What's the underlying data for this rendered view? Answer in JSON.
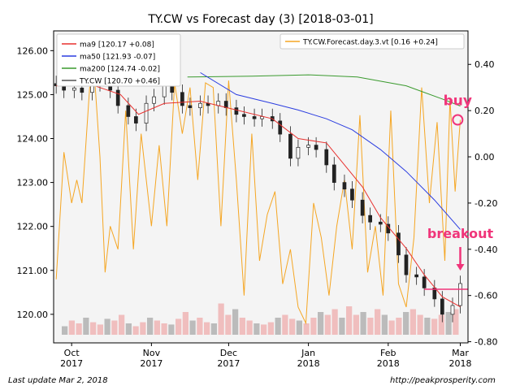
{
  "chart_data": {
    "type": "candlestick-with-overlays",
    "title": "TY.CW vs Forecast day (3)  [2018-03-01]",
    "x_tick_labels": [
      {
        "line1": "Oct",
        "line2": "2017",
        "date": "2017-10-01"
      },
      {
        "line1": "Nov",
        "line2": "2017",
        "date": "2017-11-01"
      },
      {
        "line1": "Dec",
        "line2": "2017",
        "date": "2017-12-01"
      },
      {
        "line1": "Jan",
        "line2": "2018",
        "date": "2018-01-01"
      },
      {
        "line1": "Feb",
        "line2": "2018",
        "date": "2018-02-01"
      },
      {
        "line1": "Mar",
        "line2": "2018",
        "date": "2018-03-01"
      }
    ],
    "x_range": [
      "2017-09-24",
      "2018-03-04"
    ],
    "left_axis": {
      "ylim": [
        119.35,
        126.45
      ],
      "ticks": [
        "120.00",
        "121.00",
        "122.00",
        "123.00",
        "124.00",
        "125.00",
        "126.00"
      ]
    },
    "right_axis": {
      "ylim": [
        -0.805,
        0.545
      ],
      "ticks": [
        "-0.80",
        "-0.60",
        "-0.40",
        "-0.20",
        "0.00",
        "0.20",
        "0.40"
      ]
    },
    "legend_left": [
      {
        "label": "ma9 [120.17 +0.08]",
        "color": "#e8312f"
      },
      {
        "label": "ma50 [121.93 -0.07]",
        "color": "#2b3de0"
      },
      {
        "label": "ma200 [124.74 -0.02]",
        "color": "#3a9a2e"
      },
      {
        "label": "TY.CW [120.70 +0.46]",
        "color": "#555555"
      }
    ],
    "legend_right": [
      {
        "label": "TY.CW.Forecast.day.3.vt [0.16 +0.24]",
        "color": "#f5a623"
      }
    ],
    "price_series": [
      {
        "date": "2017-09-25",
        "close": 125.2
      },
      {
        "date": "2017-09-28",
        "close": 125.1
      },
      {
        "date": "2017-10-02",
        "close": 125.15
      },
      {
        "date": "2017-10-05",
        "close": 125.05
      },
      {
        "date": "2017-10-09",
        "close": 125.25
      },
      {
        "date": "2017-10-12",
        "close": 125.3
      },
      {
        "date": "2017-10-16",
        "close": 125.1
      },
      {
        "date": "2017-10-19",
        "close": 124.75
      },
      {
        "date": "2017-10-23",
        "close": 124.5
      },
      {
        "date": "2017-10-26",
        "close": 124.35
      },
      {
        "date": "2017-10-30",
        "close": 124.8
      },
      {
        "date": "2017-11-02",
        "close": 124.95
      },
      {
        "date": "2017-11-06",
        "close": 125.2
      },
      {
        "date": "2017-11-09",
        "close": 125.05
      },
      {
        "date": "2017-11-13",
        "close": 124.75
      },
      {
        "date": "2017-11-16",
        "close": 124.7
      },
      {
        "date": "2017-11-20",
        "close": 124.8
      },
      {
        "date": "2017-11-23",
        "close": 124.75
      },
      {
        "date": "2017-11-27",
        "close": 124.85
      },
      {
        "date": "2017-11-30",
        "close": 124.7
      },
      {
        "date": "2017-12-04",
        "close": 124.55
      },
      {
        "date": "2017-12-07",
        "close": 124.5
      },
      {
        "date": "2017-12-11",
        "close": 124.45
      },
      {
        "date": "2017-12-14",
        "close": 124.5
      },
      {
        "date": "2017-12-18",
        "close": 124.4
      },
      {
        "date": "2017-12-21",
        "close": 124.1
      },
      {
        "date": "2017-12-25",
        "close": 123.55
      },
      {
        "date": "2017-12-28",
        "close": 123.8
      },
      {
        "date": "2018-01-01",
        "close": 123.85
      },
      {
        "date": "2018-01-04",
        "close": 123.75
      },
      {
        "date": "2018-01-08",
        "close": 123.4
      },
      {
        "date": "2018-01-11",
        "close": 123.0
      },
      {
        "date": "2018-01-15",
        "close": 122.85
      },
      {
        "date": "2018-01-18",
        "close": 122.6
      },
      {
        "date": "2018-01-22",
        "close": 122.25
      },
      {
        "date": "2018-01-25",
        "close": 122.1
      },
      {
        "date": "2018-01-29",
        "close": 122.05
      },
      {
        "date": "2018-02-01",
        "close": 121.85
      },
      {
        "date": "2018-02-05",
        "close": 121.35
      },
      {
        "date": "2018-02-08",
        "close": 120.9
      },
      {
        "date": "2018-02-12",
        "close": 120.85
      },
      {
        "date": "2018-02-15",
        "close": 120.6
      },
      {
        "date": "2018-02-19",
        "close": 120.35
      },
      {
        "date": "2018-02-22",
        "close": 120.0
      },
      {
        "date": "2018-02-26",
        "close": 120.2
      },
      {
        "date": "2018-03-01",
        "close": 120.7
      }
    ],
    "ma9": [
      {
        "date": "2017-09-25",
        "v": 125.2
      },
      {
        "date": "2017-10-10",
        "v": 125.2
      },
      {
        "date": "2017-10-20",
        "v": 125.0
      },
      {
        "date": "2017-10-27",
        "v": 124.55
      },
      {
        "date": "2017-11-06",
        "v": 124.8
      },
      {
        "date": "2017-11-20",
        "v": 124.85
      },
      {
        "date": "2017-12-04",
        "v": 124.65
      },
      {
        "date": "2017-12-18",
        "v": 124.45
      },
      {
        "date": "2017-12-28",
        "v": 124.0
      },
      {
        "date": "2018-01-08",
        "v": 123.9
      },
      {
        "date": "2018-01-15",
        "v": 123.4
      },
      {
        "date": "2018-01-22",
        "v": 122.9
      },
      {
        "date": "2018-01-29",
        "v": 122.2
      },
      {
        "date": "2018-02-08",
        "v": 121.5
      },
      {
        "date": "2018-02-15",
        "v": 120.9
      },
      {
        "date": "2018-02-22",
        "v": 120.4
      },
      {
        "date": "2018-03-01",
        "v": 120.17
      }
    ],
    "ma50": [
      {
        "date": "2017-11-20",
        "v": 125.5
      },
      {
        "date": "2017-12-04",
        "v": 125.0
      },
      {
        "date": "2017-12-18",
        "v": 124.8
      },
      {
        "date": "2017-12-28",
        "v": 124.65
      },
      {
        "date": "2018-01-08",
        "v": 124.45
      },
      {
        "date": "2018-01-18",
        "v": 124.2
      },
      {
        "date": "2018-01-29",
        "v": 123.75
      },
      {
        "date": "2018-02-08",
        "v": 123.25
      },
      {
        "date": "2018-02-19",
        "v": 122.6
      },
      {
        "date": "2018-03-01",
        "v": 121.93
      }
    ],
    "ma200": [
      {
        "date": "2017-11-15",
        "v": 125.4
      },
      {
        "date": "2017-12-10",
        "v": 125.42
      },
      {
        "date": "2018-01-01",
        "v": 125.45
      },
      {
        "date": "2018-01-20",
        "v": 125.4
      },
      {
        "date": "2018-02-08",
        "v": 125.2
      },
      {
        "date": "2018-02-22",
        "v": 124.9
      },
      {
        "date": "2018-03-01",
        "v": 124.74
      }
    ],
    "forecast_series": [
      {
        "date": "2017-09-25",
        "v": -0.53
      },
      {
        "date": "2017-09-28",
        "v": 0.02
      },
      {
        "date": "2017-10-01",
        "v": -0.2
      },
      {
        "date": "2017-10-03",
        "v": -0.1
      },
      {
        "date": "2017-10-05",
        "v": -0.2
      },
      {
        "date": "2017-10-08",
        "v": 0.3
      },
      {
        "date": "2017-10-10",
        "v": 0.33
      },
      {
        "date": "2017-10-12",
        "v": 0.0
      },
      {
        "date": "2017-10-14",
        "v": -0.5
      },
      {
        "date": "2017-10-16",
        "v": -0.3
      },
      {
        "date": "2017-10-19",
        "v": -0.4
      },
      {
        "date": "2017-10-22",
        "v": 0.2
      },
      {
        "date": "2017-10-25",
        "v": -0.4
      },
      {
        "date": "2017-10-28",
        "v": 0.1
      },
      {
        "date": "2017-11-01",
        "v": -0.3
      },
      {
        "date": "2017-11-04",
        "v": 0.05
      },
      {
        "date": "2017-11-07",
        "v": -0.3
      },
      {
        "date": "2017-11-10",
        "v": 0.32
      },
      {
        "date": "2017-11-13",
        "v": 0.1
      },
      {
        "date": "2017-11-16",
        "v": 0.3
      },
      {
        "date": "2017-11-19",
        "v": -0.1
      },
      {
        "date": "2017-11-22",
        "v": 0.32
      },
      {
        "date": "2017-11-25",
        "v": 0.3
      },
      {
        "date": "2017-11-28",
        "v": -0.3
      },
      {
        "date": "2017-12-01",
        "v": 0.33
      },
      {
        "date": "2017-12-04",
        "v": -0.1
      },
      {
        "date": "2017-12-07",
        "v": -0.6
      },
      {
        "date": "2017-12-10",
        "v": 0.1
      },
      {
        "date": "2017-12-13",
        "v": -0.45
      },
      {
        "date": "2017-12-16",
        "v": -0.25
      },
      {
        "date": "2017-12-19",
        "v": -0.15
      },
      {
        "date": "2017-12-22",
        "v": -0.55
      },
      {
        "date": "2017-12-25",
        "v": -0.4
      },
      {
        "date": "2017-12-28",
        "v": -0.65
      },
      {
        "date": "2017-12-31",
        "v": -0.72
      },
      {
        "date": "2018-01-03",
        "v": -0.2
      },
      {
        "date": "2018-01-06",
        "v": -0.35
      },
      {
        "date": "2018-01-09",
        "v": -0.6
      },
      {
        "date": "2018-01-12",
        "v": -0.3
      },
      {
        "date": "2018-01-15",
        "v": -0.1
      },
      {
        "date": "2018-01-18",
        "v": -0.4
      },
      {
        "date": "2018-01-21",
        "v": 0.18
      },
      {
        "date": "2018-01-24",
        "v": -0.5
      },
      {
        "date": "2018-01-27",
        "v": -0.3
      },
      {
        "date": "2018-01-30",
        "v": -0.6
      },
      {
        "date": "2018-02-02",
        "v": 0.2
      },
      {
        "date": "2018-02-05",
        "v": -0.55
      },
      {
        "date": "2018-02-08",
        "v": -0.65
      },
      {
        "date": "2018-02-11",
        "v": -0.35
      },
      {
        "date": "2018-02-14",
        "v": 0.3
      },
      {
        "date": "2018-02-17",
        "v": -0.2
      },
      {
        "date": "2018-02-20",
        "v": 0.15
      },
      {
        "date": "2018-02-23",
        "v": -0.45
      },
      {
        "date": "2018-02-25",
        "v": 0.25
      },
      {
        "date": "2018-02-27",
        "v": -0.15
      },
      {
        "date": "2018-03-01",
        "v": 0.16
      }
    ],
    "volume_bars": [
      0.15,
      0.25,
      0.2,
      0.3,
      0.22,
      0.18,
      0.28,
      0.25,
      0.35,
      0.2,
      0.15,
      0.22,
      0.3,
      0.25,
      0.2,
      0.18,
      0.28,
      0.4,
      0.25,
      0.3,
      0.22,
      0.2,
      0.55,
      0.35,
      0.45,
      0.3,
      0.25,
      0.2,
      0.18,
      0.22,
      0.3,
      0.35,
      0.28,
      0.25,
      0.2,
      0.3,
      0.4,
      0.35,
      0.45,
      0.3,
      0.5,
      0.35,
      0.4,
      0.3,
      0.45,
      0.35,
      0.25,
      0.3,
      0.4,
      0.45,
      0.35,
      0.3,
      0.28,
      0.35,
      0.4,
      0.45
    ],
    "breakout_level": 120.57,
    "annotations": {
      "buy": {
        "text": "buy",
        "color": "#f0357a",
        "date": "2018-02-28",
        "forecast_value": 0.16
      },
      "breakout": {
        "text": "breakout",
        "color": "#f0357a",
        "date": "2018-03-01",
        "price": 120.57
      }
    }
  },
  "footer": {
    "last_update": "Last update Mar  2, 2018",
    "url": "http://peakprosperity.com"
  }
}
